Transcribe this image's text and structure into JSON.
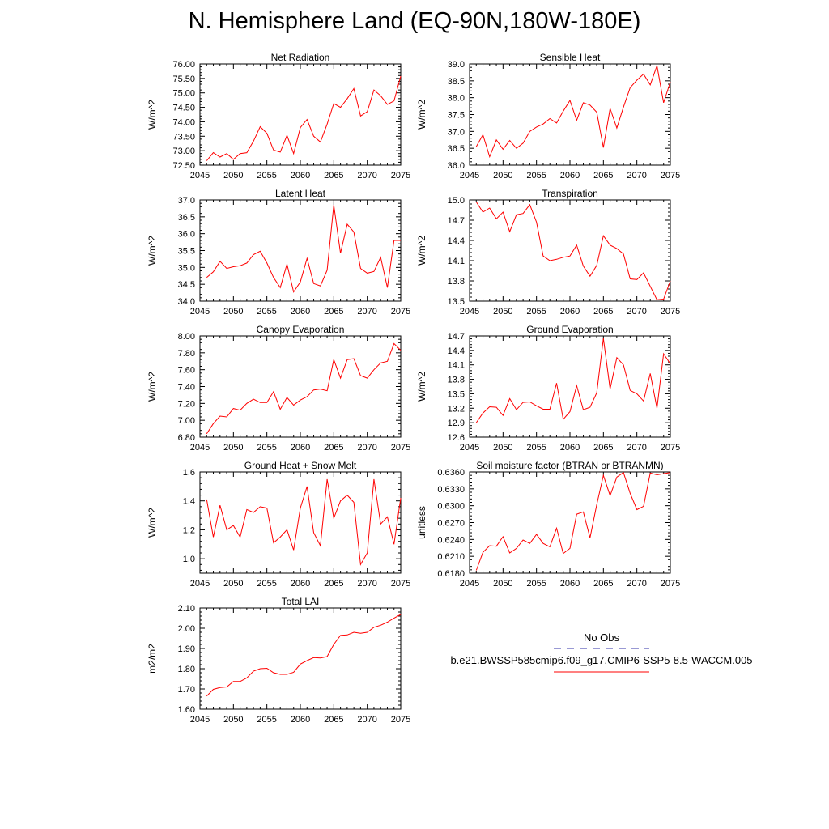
{
  "page_title": "N. Hemisphere Land (EQ-90N,180W-180E)",
  "legend": {
    "title": "No Obs",
    "obs_color": "#3333aa",
    "model_label": "b.e21.BWSSP585cmip6.f09_g17.CMIP6-SSP5-8.5-WACCM.005",
    "model_color": "#ff0000"
  },
  "chart_data": [
    {
      "type": "line",
      "title": "Net Radiation",
      "ylabel": "W/m^2",
      "xlim": [
        2045,
        2075
      ],
      "ylim": [
        72.5,
        76.0
      ],
      "xticks": [
        "2045",
        "2050",
        "2055",
        "2060",
        "2065",
        "2070",
        "2075"
      ],
      "yticks": [
        "72.50",
        "73.00",
        "73.50",
        "74.00",
        "74.50",
        "75.00",
        "75.50",
        "76.00"
      ],
      "x": [
        2046,
        2047,
        2048,
        2049,
        2050,
        2051,
        2052,
        2053,
        2054,
        2055,
        2056,
        2057,
        2058,
        2059,
        2060,
        2061,
        2062,
        2063,
        2064,
        2065,
        2066,
        2067,
        2068,
        2069,
        2070,
        2071,
        2072,
        2073,
        2074,
        2075
      ],
      "values": [
        72.65,
        72.93,
        72.78,
        72.9,
        72.7,
        72.9,
        72.93,
        73.33,
        73.83,
        73.6,
        73.02,
        72.95,
        73.53,
        72.9,
        73.8,
        74.08,
        73.5,
        73.3,
        73.92,
        74.63,
        74.5,
        74.8,
        75.15,
        74.2,
        74.35,
        75.1,
        74.9,
        74.6,
        74.72,
        75.58
      ],
      "series_color": "#ff0000"
    },
    {
      "type": "line",
      "title": "Sensible Heat",
      "ylabel": "W/m^2",
      "xlim": [
        2045,
        2075
      ],
      "ylim": [
        36.0,
        39.0
      ],
      "xticks": [
        "2045",
        "2050",
        "2055",
        "2060",
        "2065",
        "2070",
        "2075"
      ],
      "yticks": [
        "36.0",
        "36.5",
        "37.0",
        "37.5",
        "38.0",
        "38.5",
        "39.0"
      ],
      "x": [
        2046,
        2047,
        2048,
        2049,
        2050,
        2051,
        2052,
        2053,
        2054,
        2055,
        2056,
        2057,
        2058,
        2059,
        2060,
        2061,
        2062,
        2063,
        2064,
        2065,
        2066,
        2067,
        2068,
        2069,
        2070,
        2071,
        2072,
        2073,
        2074,
        2075
      ],
      "values": [
        36.55,
        36.9,
        36.25,
        36.75,
        36.47,
        36.73,
        36.5,
        36.65,
        37.0,
        37.13,
        37.22,
        37.38,
        37.25,
        37.6,
        37.92,
        37.33,
        37.85,
        37.78,
        37.57,
        36.52,
        37.68,
        37.1,
        37.72,
        38.3,
        38.52,
        38.7,
        38.38,
        38.95,
        37.85,
        38.47
      ],
      "series_color": "#ff0000"
    },
    {
      "type": "line",
      "title": "Latent Heat",
      "ylabel": "W/m^2",
      "xlim": [
        2045,
        2075
      ],
      "ylim": [
        34.0,
        37.0
      ],
      "xticks": [
        "2045",
        "2050",
        "2055",
        "2060",
        "2065",
        "2070",
        "2075"
      ],
      "yticks": [
        "34.0",
        "34.5",
        "35.0",
        "35.5",
        "36.0",
        "36.5",
        "37.0"
      ],
      "x": [
        2046,
        2047,
        2048,
        2049,
        2050,
        2051,
        2052,
        2053,
        2054,
        2055,
        2056,
        2057,
        2058,
        2059,
        2060,
        2061,
        2062,
        2063,
        2064,
        2065,
        2066,
        2067,
        2068,
        2069,
        2070,
        2071,
        2072,
        2073,
        2074,
        2075
      ],
      "values": [
        34.7,
        34.87,
        35.18,
        34.97,
        35.02,
        35.05,
        35.13,
        35.38,
        35.48,
        35.13,
        34.7,
        34.4,
        35.1,
        34.27,
        34.57,
        35.27,
        34.52,
        34.45,
        34.92,
        36.85,
        35.42,
        36.28,
        36.05,
        34.97,
        34.83,
        34.88,
        35.3,
        34.4,
        35.8,
        35.8
      ],
      "series_color": "#ff0000"
    },
    {
      "type": "line",
      "title": "Transpiration",
      "ylabel": "W/m^2",
      "xlim": [
        2045,
        2075
      ],
      "ylim": [
        13.5,
        15.0
      ],
      "xticks": [
        "2045",
        "2050",
        "2055",
        "2060",
        "2065",
        "2070",
        "2075"
      ],
      "yticks": [
        "13.5",
        "13.8",
        "14.1",
        "14.4",
        "14.7",
        "15.0"
      ],
      "x": [
        2046,
        2047,
        2048,
        2049,
        2050,
        2051,
        2052,
        2053,
        2054,
        2055,
        2056,
        2057,
        2058,
        2059,
        2060,
        2061,
        2062,
        2063,
        2064,
        2065,
        2066,
        2067,
        2068,
        2069,
        2070,
        2071,
        2072,
        2073,
        2074,
        2075
      ],
      "values": [
        14.97,
        14.82,
        14.88,
        14.72,
        14.82,
        14.53,
        14.78,
        14.8,
        14.93,
        14.67,
        14.17,
        14.1,
        14.12,
        14.15,
        14.17,
        14.33,
        14.02,
        13.87,
        14.03,
        14.47,
        14.33,
        14.28,
        14.2,
        13.83,
        13.82,
        13.92,
        13.72,
        13.52,
        13.53,
        13.8
      ],
      "series_color": "#ff0000"
    },
    {
      "type": "line",
      "title": "Canopy Evaporation",
      "ylabel": "W/m^2",
      "xlim": [
        2045,
        2075
      ],
      "ylim": [
        6.8,
        8.0
      ],
      "xticks": [
        "2045",
        "2050",
        "2055",
        "2060",
        "2065",
        "2070",
        "2075"
      ],
      "yticks": [
        "6.80",
        "7.00",
        "7.20",
        "7.40",
        "7.60",
        "7.80",
        "8.00"
      ],
      "x": [
        2046,
        2047,
        2048,
        2049,
        2050,
        2051,
        2052,
        2053,
        2054,
        2055,
        2056,
        2057,
        2058,
        2059,
        2060,
        2061,
        2062,
        2063,
        2064,
        2065,
        2066,
        2067,
        2068,
        2069,
        2070,
        2071,
        2072,
        2073,
        2074,
        2075
      ],
      "values": [
        6.84,
        6.96,
        7.05,
        7.04,
        7.14,
        7.12,
        7.2,
        7.25,
        7.21,
        7.21,
        7.34,
        7.13,
        7.27,
        7.18,
        7.24,
        7.28,
        7.36,
        7.37,
        7.35,
        7.72,
        7.5,
        7.72,
        7.73,
        7.53,
        7.5,
        7.6,
        7.68,
        7.7,
        7.91,
        7.83
      ],
      "series_color": "#ff0000"
    },
    {
      "type": "line",
      "title": "Ground Evaporation",
      "ylabel": "W/m^2",
      "xlim": [
        2045,
        2075
      ],
      "ylim": [
        12.6,
        14.7
      ],
      "xticks": [
        "2045",
        "2050",
        "2055",
        "2060",
        "2065",
        "2070",
        "2075"
      ],
      "yticks": [
        "12.6",
        "12.9",
        "13.2",
        "13.5",
        "13.8",
        "14.1",
        "14.4",
        "14.7"
      ],
      "x": [
        2046,
        2047,
        2048,
        2049,
        2050,
        2051,
        2052,
        2053,
        2054,
        2055,
        2056,
        2057,
        2058,
        2059,
        2060,
        2061,
        2062,
        2063,
        2064,
        2065,
        2066,
        2067,
        2068,
        2069,
        2070,
        2071,
        2072,
        2073,
        2074,
        2075
      ],
      "values": [
        12.9,
        13.1,
        13.23,
        13.22,
        13.05,
        13.4,
        13.17,
        13.32,
        13.33,
        13.25,
        13.18,
        13.18,
        13.72,
        12.97,
        13.13,
        13.67,
        13.17,
        13.22,
        13.52,
        14.65,
        13.6,
        14.25,
        14.1,
        13.57,
        13.5,
        13.35,
        13.92,
        13.2,
        14.33,
        14.12
      ],
      "series_color": "#ff0000"
    },
    {
      "type": "line",
      "title": "Ground Heat + Snow Melt",
      "ylabel": "W/m^2",
      "xlim": [
        2045,
        2075
      ],
      "ylim": [
        0.9,
        1.6
      ],
      "xticks": [
        "2045",
        "2050",
        "2055",
        "2060",
        "2065",
        "2070",
        "2075"
      ],
      "yticks": [
        "1.0",
        "1.2",
        "1.4",
        "1.6"
      ],
      "ytickvals": [
        1.0,
        1.2,
        1.4,
        1.6
      ],
      "x": [
        2046,
        2047,
        2048,
        2049,
        2050,
        2051,
        2052,
        2053,
        2054,
        2055,
        2056,
        2057,
        2058,
        2059,
        2060,
        2061,
        2062,
        2063,
        2064,
        2065,
        2066,
        2067,
        2068,
        2069,
        2070,
        2071,
        2072,
        2073,
        2074,
        2075
      ],
      "values": [
        1.41,
        1.15,
        1.37,
        1.2,
        1.23,
        1.15,
        1.34,
        1.32,
        1.36,
        1.35,
        1.11,
        1.15,
        1.2,
        1.06,
        1.35,
        1.5,
        1.18,
        1.09,
        1.55,
        1.28,
        1.4,
        1.44,
        1.39,
        0.96,
        1.04,
        1.55,
        1.24,
        1.29,
        1.1,
        1.42
      ],
      "series_color": "#ff0000"
    },
    {
      "type": "line",
      "title": "Soil moisture factor (BTRAN or BTRANMN)",
      "ylabel": "unitless",
      "xlim": [
        2045,
        2075
      ],
      "ylim": [
        0.618,
        0.636
      ],
      "xticks": [
        "2045",
        "2050",
        "2055",
        "2060",
        "2065",
        "2070",
        "2075"
      ],
      "yticks": [
        "0.6180",
        "0.6210",
        "0.6240",
        "0.6270",
        "0.6300",
        "0.6330",
        "0.6360"
      ],
      "x": [
        2046,
        2047,
        2048,
        2049,
        2050,
        2051,
        2052,
        2053,
        2054,
        2055,
        2056,
        2057,
        2058,
        2059,
        2060,
        2061,
        2062,
        2063,
        2064,
        2065,
        2066,
        2067,
        2068,
        2069,
        2070,
        2071,
        2072,
        2073,
        2074,
        2075
      ],
      "values": [
        0.6185,
        0.6217,
        0.6229,
        0.6228,
        0.6245,
        0.6216,
        0.6224,
        0.6239,
        0.6233,
        0.6249,
        0.6233,
        0.6227,
        0.626,
        0.6215,
        0.6224,
        0.6285,
        0.6289,
        0.6243,
        0.6302,
        0.6354,
        0.6318,
        0.6351,
        0.6359,
        0.6322,
        0.6293,
        0.6299,
        0.6358,
        0.6355,
        0.6357,
        0.6359
      ],
      "series_color": "#ff0000"
    },
    {
      "type": "line",
      "title": "Total LAI",
      "ylabel": "m2/m2",
      "xlim": [
        2045,
        2075
      ],
      "ylim": [
        1.6,
        2.1
      ],
      "xticks": [
        "2045",
        "2050",
        "2055",
        "2060",
        "2065",
        "2070",
        "2075"
      ],
      "yticks": [
        "1.60",
        "1.70",
        "1.80",
        "1.90",
        "2.00",
        "2.10"
      ],
      "x": [
        2046,
        2047,
        2048,
        2049,
        2050,
        2051,
        2052,
        2053,
        2054,
        2055,
        2056,
        2057,
        2058,
        2059,
        2060,
        2061,
        2062,
        2063,
        2064,
        2065,
        2066,
        2067,
        2068,
        2069,
        2070,
        2071,
        2072,
        2073,
        2074,
        2075
      ],
      "values": [
        1.665,
        1.698,
        1.707,
        1.71,
        1.737,
        1.737,
        1.755,
        1.788,
        1.8,
        1.802,
        1.78,
        1.772,
        1.772,
        1.782,
        1.823,
        1.84,
        1.855,
        1.853,
        1.86,
        1.92,
        1.965,
        1.967,
        1.98,
        1.975,
        1.98,
        2.005,
        2.015,
        2.03,
        2.05,
        2.068
      ],
      "series_color": "#ff0000"
    }
  ]
}
